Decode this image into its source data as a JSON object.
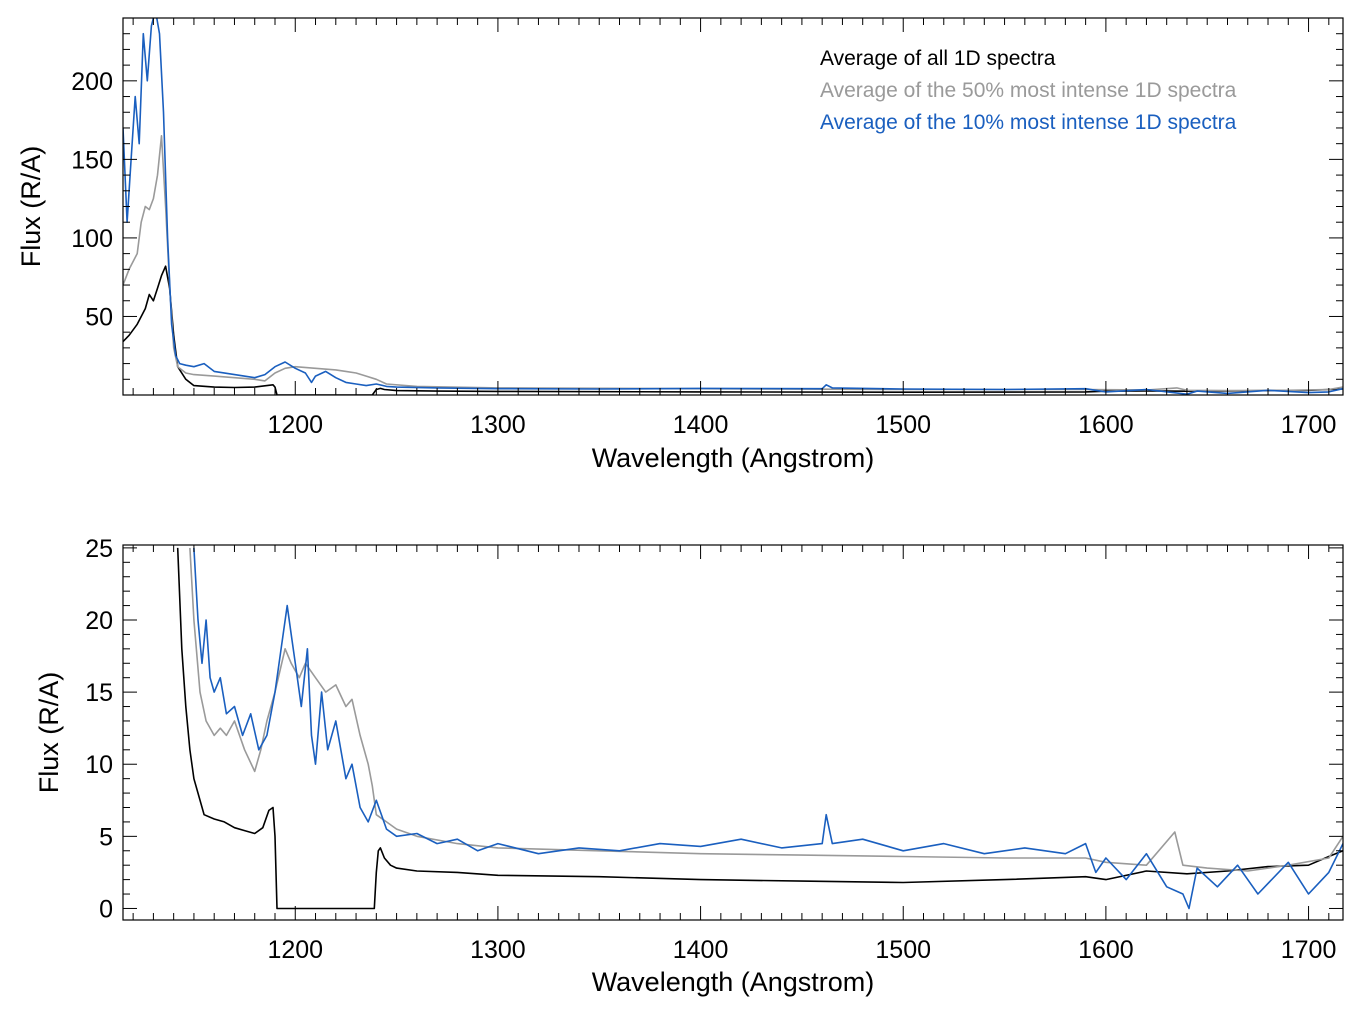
{
  "chart_data": [
    {
      "type": "line",
      "xlabel": "Wavelength (Angstrom)",
      "ylabel": "Flux (R/A)",
      "xlim": [
        1115,
        1717
      ],
      "ylim": [
        0,
        240
      ],
      "xticks": [
        1200,
        1300,
        1400,
        1500,
        1600,
        1700
      ],
      "yticks": [
        50,
        100,
        150,
        200
      ],
      "legend_placement": "top-right",
      "grid": false,
      "series": [
        {
          "name": "Average of all 1D spectra",
          "color": "#000000",
          "x": [
            1115,
            1118,
            1122,
            1126,
            1128,
            1130,
            1132,
            1134,
            1136,
            1138,
            1140,
            1142,
            1146,
            1150,
            1160,
            1170,
            1180,
            1189,
            1190,
            1191,
            1238,
            1240,
            1242,
            1244,
            1250,
            1270,
            1300,
            1400,
            1500,
            1590,
            1600,
            1620,
            1640,
            1660,
            1680,
            1700,
            1710,
            1717
          ],
          "y": [
            34,
            38,
            45,
            55,
            64,
            60,
            68,
            76,
            82,
            68,
            38,
            18,
            10,
            6,
            5,
            4.8,
            5,
            6.5,
            5,
            0,
            0,
            3.5,
            4.2,
            3.5,
            2.8,
            2.5,
            2.3,
            2.0,
            1.8,
            2.0,
            2.4,
            2.6,
            2.4,
            2.6,
            2.8,
            3.0,
            3.5,
            3.8
          ]
        },
        {
          "name": "Average of the 50% most intense 1D spectra",
          "color": "#9a9a9a",
          "x": [
            1115,
            1118,
            1122,
            1124,
            1126,
            1128,
            1130,
            1132,
            1134,
            1136,
            1138,
            1140,
            1142,
            1146,
            1150,
            1160,
            1170,
            1180,
            1185,
            1190,
            1195,
            1200,
            1210,
            1220,
            1225,
            1230,
            1235,
            1240,
            1245,
            1260,
            1300,
            1400,
            1500,
            1590,
            1620,
            1635,
            1640,
            1660,
            1690,
            1710,
            1717
          ],
          "y": [
            70,
            80,
            90,
            110,
            120,
            118,
            125,
            140,
            165,
            120,
            70,
            30,
            18,
            14,
            13,
            12,
            11,
            10,
            9,
            14,
            17,
            18,
            17,
            16,
            15,
            14,
            12,
            10,
            7,
            5.5,
            4.5,
            4.0,
            3.5,
            3.5,
            3.2,
            4.5,
            3.0,
            2.8,
            3.0,
            3.5,
            5.0
          ]
        },
        {
          "name": "Average of the 10% most intense 1D spectra",
          "color": "#1a5fbf",
          "x": [
            1115,
            1117,
            1119,
            1121,
            1123,
            1125,
            1127,
            1129,
            1131,
            1133,
            1135,
            1137,
            1139,
            1141,
            1143,
            1146,
            1150,
            1155,
            1160,
            1170,
            1180,
            1185,
            1190,
            1195,
            1200,
            1205,
            1208,
            1210,
            1215,
            1220,
            1225,
            1230,
            1235,
            1240,
            1245,
            1250,
            1270,
            1300,
            1350,
            1400,
            1460,
            1462,
            1465,
            1500,
            1550,
            1590,
            1600,
            1620,
            1640,
            1645,
            1660,
            1680,
            1700,
            1710,
            1717
          ],
          "y": [
            170,
            110,
            150,
            190,
            160,
            230,
            200,
            235,
            245,
            230,
            180,
            100,
            45,
            25,
            20,
            19,
            18,
            20,
            15,
            13,
            11,
            13,
            18,
            21,
            17,
            14,
            8,
            12,
            15,
            11,
            8,
            7,
            6,
            7,
            5.5,
            5.0,
            4.5,
            4.0,
            3.8,
            4.2,
            4.0,
            6.5,
            4.5,
            3.8,
            3.5,
            4.0,
            2.0,
            3.5,
            0.5,
            2.5,
            1.0,
            3.0,
            1.5,
            2.0,
            4.0
          ]
        }
      ]
    },
    {
      "type": "line",
      "xlabel": "Wavelength (Angstrom)",
      "ylabel": "Flux (R/A)",
      "xlim": [
        1115,
        1717
      ],
      "ylim": [
        -0.8,
        25.2
      ],
      "xticks": [
        1200,
        1300,
        1400,
        1500,
        1600,
        1700
      ],
      "yticks": [
        0,
        5,
        10,
        15,
        20,
        25
      ],
      "grid": false,
      "series": [
        {
          "name": "Average of all 1D spectra",
          "color": "#000000",
          "x": [
            1142,
            1144,
            1146,
            1148,
            1150,
            1152,
            1155,
            1160,
            1165,
            1170,
            1175,
            1180,
            1184,
            1187,
            1189,
            1190,
            1191,
            1239,
            1240,
            1241,
            1242,
            1244,
            1247,
            1250,
            1260,
            1280,
            1300,
            1350,
            1400,
            1450,
            1500,
            1550,
            1590,
            1600,
            1620,
            1640,
            1660,
            1680,
            1700,
            1710,
            1717
          ],
          "y": [
            25,
            18,
            14,
            11,
            9,
            8,
            6.5,
            6.2,
            6.0,
            5.6,
            5.4,
            5.2,
            5.6,
            6.8,
            7.0,
            5.0,
            0,
            0,
            2.5,
            4.0,
            4.2,
            3.5,
            3.0,
            2.8,
            2.6,
            2.5,
            2.3,
            2.2,
            2.0,
            1.9,
            1.8,
            2.0,
            2.2,
            2.0,
            2.6,
            2.4,
            2.6,
            2.9,
            3.0,
            3.6,
            4.0
          ]
        },
        {
          "name": "Average of the 50% most intense 1D spectra",
          "color": "#9a9a9a",
          "x": [
            1148,
            1150,
            1153,
            1156,
            1160,
            1163,
            1166,
            1170,
            1175,
            1180,
            1183,
            1186,
            1190,
            1195,
            1198,
            1202,
            1205,
            1210,
            1215,
            1220,
            1225,
            1228,
            1232,
            1236,
            1238,
            1240,
            1245,
            1250,
            1260,
            1280,
            1300,
            1350,
            1400,
            1450,
            1500,
            1550,
            1590,
            1600,
            1620,
            1634,
            1638,
            1650,
            1670,
            1690,
            1710,
            1717
          ],
          "y": [
            25,
            20,
            15,
            13,
            12,
            12.5,
            12,
            13,
            11,
            9.5,
            11,
            13,
            15,
            18,
            17,
            16,
            17,
            16,
            15,
            15.5,
            14,
            14.5,
            12,
            10,
            8.5,
            6.5,
            6.0,
            5.5,
            5.0,
            4.5,
            4.2,
            4.0,
            3.8,
            3.7,
            3.6,
            3.5,
            3.5,
            3.2,
            3.0,
            5.3,
            3.0,
            2.8,
            2.6,
            3.0,
            3.5,
            5.0
          ]
        },
        {
          "name": "Average of the 10% most intense 1D spectra",
          "color": "#1a5fbf",
          "x": [
            1150,
            1152,
            1154,
            1156,
            1158,
            1160,
            1163,
            1166,
            1170,
            1174,
            1178,
            1182,
            1186,
            1190,
            1193,
            1196,
            1198,
            1200,
            1203,
            1206,
            1208,
            1210,
            1213,
            1216,
            1220,
            1225,
            1228,
            1232,
            1236,
            1240,
            1245,
            1250,
            1260,
            1270,
            1280,
            1290,
            1300,
            1320,
            1340,
            1360,
            1380,
            1400,
            1420,
            1440,
            1460,
            1462,
            1465,
            1480,
            1500,
            1520,
            1540,
            1560,
            1580,
            1590,
            1595,
            1600,
            1610,
            1620,
            1630,
            1638,
            1641,
            1645,
            1655,
            1665,
            1675,
            1690,
            1700,
            1710,
            1717
          ],
          "y": [
            25,
            20,
            17,
            20,
            16,
            15,
            16,
            13.5,
            14,
            12,
            13.5,
            11,
            12,
            15,
            18,
            21,
            19,
            17,
            14,
            18,
            12,
            10,
            15,
            11,
            13,
            9,
            10,
            7,
            6,
            7.5,
            5.5,
            5.0,
            5.2,
            4.5,
            4.8,
            4.0,
            4.5,
            3.8,
            4.2,
            4.0,
            4.5,
            4.3,
            4.8,
            4.2,
            4.5,
            6.5,
            4.5,
            4.8,
            4.0,
            4.5,
            3.8,
            4.2,
            3.8,
            4.5,
            2.5,
            3.5,
            2.0,
            3.8,
            1.5,
            1.0,
            0.0,
            2.8,
            1.5,
            3.0,
            1.0,
            3.2,
            1.0,
            2.5,
            4.5
          ]
        }
      ]
    }
  ]
}
